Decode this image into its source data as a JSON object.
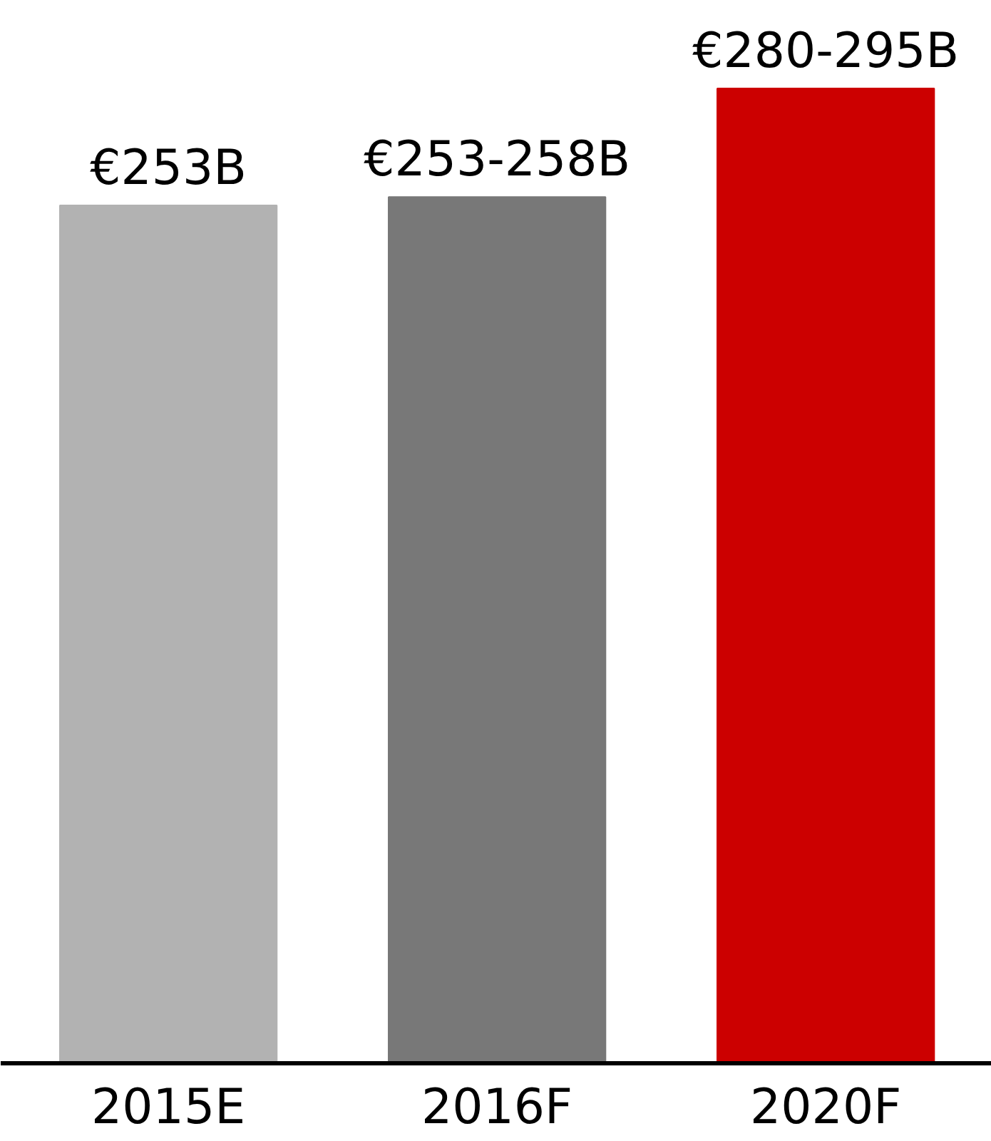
{
  "chart_data": {
    "type": "bar",
    "categories": [
      "2015E",
      "2016F",
      "2020F"
    ],
    "values": [
      253,
      255.5,
      287.5
    ],
    "tick_labels": "x",
    "colors": [
      "#b2b2b2",
      "#787878",
      "#cc0000"
    ],
    "value_labels": [
      "€253B",
      "€253-258B",
      "€280-295B"
    ],
    "grid": false
  }
}
